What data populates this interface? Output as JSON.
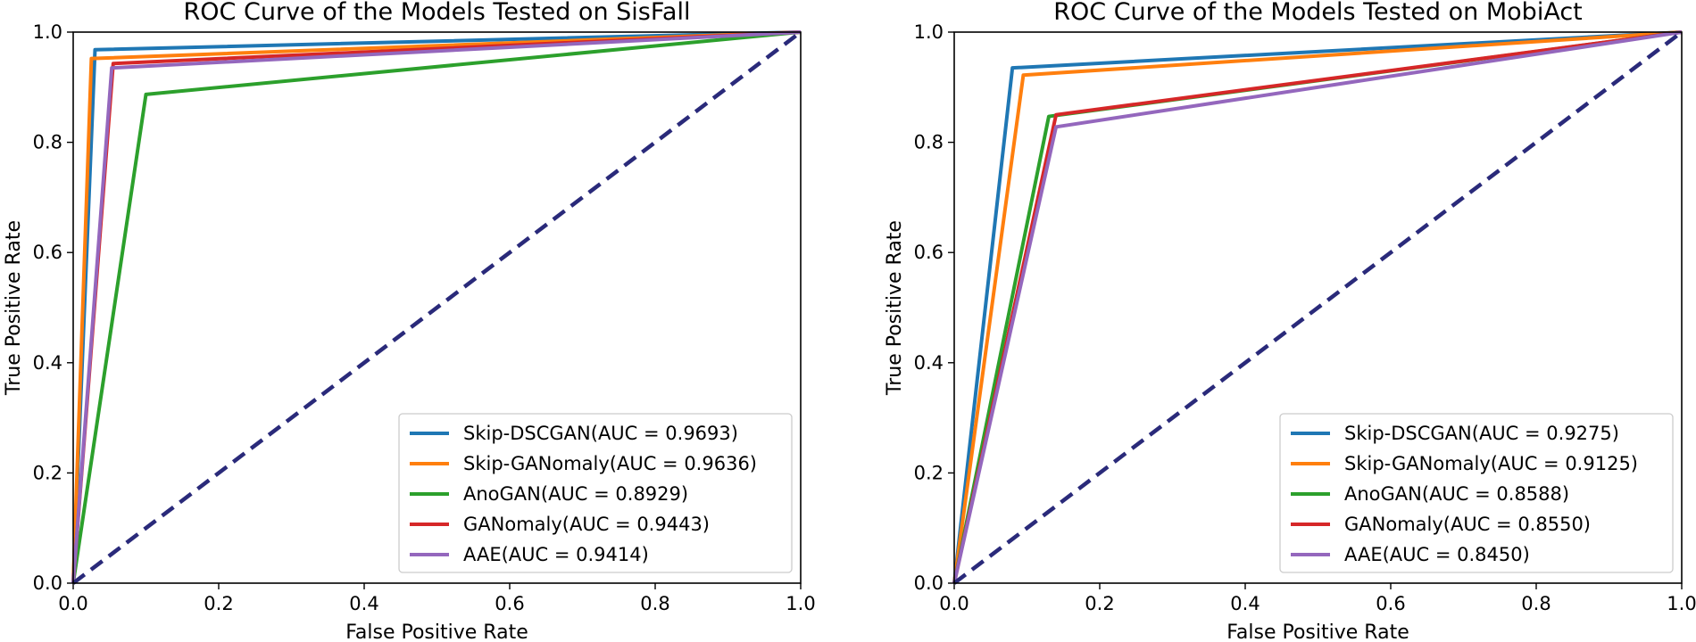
{
  "colors": {
    "series": [
      "#1f77b4",
      "#ff7f0e",
      "#2ca02c",
      "#d62728",
      "#9467bd"
    ],
    "diagonal": "#2a2a7a"
  },
  "chart_data": [
    {
      "type": "line",
      "title": "ROC Curve of the Models Tested on SisFall",
      "xlabel": "False Positive Rate",
      "ylabel": "True Positive Rate",
      "xlim": [
        0,
        1
      ],
      "ylim": [
        0,
        1
      ],
      "xticks": [
        "0.0",
        "0.2",
        "0.4",
        "0.6",
        "0.8",
        "1.0"
      ],
      "yticks": [
        "0.0",
        "0.2",
        "0.4",
        "0.6",
        "0.8",
        "1.0"
      ],
      "grid": false,
      "legend_position": "lower-right",
      "diagonal": {
        "x": [
          0,
          1
        ],
        "y": [
          0,
          1
        ],
        "style": "dashed"
      },
      "series": [
        {
          "name": "Skip-DSCGAN(AUC = 0.9693)",
          "x": [
            0,
            0.03,
            1
          ],
          "y": [
            0,
            0.968,
            1
          ]
        },
        {
          "name": "Skip-GANomaly(AUC = 0.9636)",
          "x": [
            0,
            0.025,
            1
          ],
          "y": [
            0,
            0.952,
            1
          ]
        },
        {
          "name": "AnoGAN(AUC = 0.8929)",
          "x": [
            0,
            0.1,
            1
          ],
          "y": [
            0,
            0.887,
            1
          ]
        },
        {
          "name": "GANomaly(AUC = 0.9443)",
          "x": [
            0,
            0.055,
            1
          ],
          "y": [
            0,
            0.943,
            1
          ]
        },
        {
          "name": "AAE(AUC = 0.9414)",
          "x": [
            0,
            0.053,
            1
          ],
          "y": [
            0,
            0.935,
            1
          ]
        }
      ]
    },
    {
      "type": "line",
      "title": "ROC Curve of the Models Tested on MobiAct",
      "xlabel": "False Positive Rate",
      "ylabel": "True Positive Rate",
      "xlim": [
        0,
        1
      ],
      "ylim": [
        0,
        1
      ],
      "xticks": [
        "0.0",
        "0.2",
        "0.4",
        "0.6",
        "0.8",
        "1.0"
      ],
      "yticks": [
        "0.0",
        "0.2",
        "0.4",
        "0.6",
        "0.8",
        "1.0"
      ],
      "grid": false,
      "legend_position": "lower-right",
      "diagonal": {
        "x": [
          0,
          1
        ],
        "y": [
          0,
          1
        ],
        "style": "dashed"
      },
      "series": [
        {
          "name": "Skip-DSCGAN(AUC = 0.9275)",
          "x": [
            0,
            0.08,
            1
          ],
          "y": [
            0,
            0.935,
            1
          ]
        },
        {
          "name": "Skip-GANomaly(AUC = 0.9125)",
          "x": [
            0,
            0.095,
            1
          ],
          "y": [
            0,
            0.922,
            1
          ]
        },
        {
          "name": "AnoGAN(AUC = 0.8588)",
          "x": [
            0,
            0.13,
            1
          ],
          "y": [
            0,
            0.847,
            1
          ]
        },
        {
          "name": "GANomaly(AUC = 0.8550)",
          "x": [
            0,
            0.14,
            1
          ],
          "y": [
            0,
            0.85,
            1
          ]
        },
        {
          "name": "AAE(AUC = 0.8450)",
          "x": [
            0,
            0.14,
            1
          ],
          "y": [
            0,
            0.828,
            1
          ]
        }
      ]
    }
  ]
}
